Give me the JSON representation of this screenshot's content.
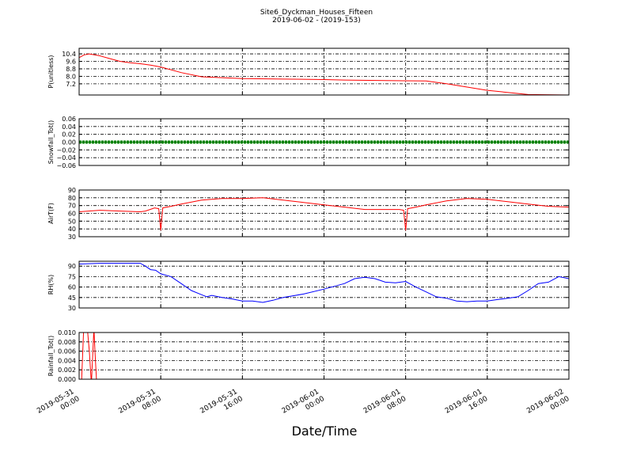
{
  "figure": {
    "title": "Site6_Dyckman_Houses_Fifteen",
    "subtitle": "2019-06-02 - (2019-153)",
    "xlabel": "Date/Time"
  },
  "chart_data": [
    {
      "type": "line",
      "ylabel": "P(unitless)",
      "color": "#ff0000",
      "ylim": [
        6.0,
        11.0
      ],
      "yticks": [
        "7.2",
        "8.0",
        "8.8",
        "9.6",
        "10.4"
      ],
      "ytick_values": [
        7.2,
        8.0,
        8.8,
        9.6,
        10.4
      ],
      "series": [
        {
          "x": [
            0,
            0.5,
            1,
            2,
            3,
            4,
            5,
            6,
            7,
            8,
            10,
            12,
            16,
            20,
            24,
            26,
            30,
            34,
            36,
            40,
            44,
            48
          ],
          "values": [
            10.0,
            10.3,
            10.4,
            10.2,
            9.9,
            9.6,
            9.45,
            9.35,
            9.2,
            9.0,
            8.4,
            7.95,
            7.75,
            7.7,
            7.65,
            7.6,
            7.55,
            7.5,
            7.2,
            6.5,
            6.05,
            6.0
          ]
        }
      ]
    },
    {
      "type": "line",
      "ylabel": "Snowfall_Tot()",
      "color": "#008000",
      "ylim": [
        -0.06,
        0.06
      ],
      "yticks": [
        "−0.06",
        "−0.04",
        "−0.02",
        "0.00",
        "0.02",
        "0.04",
        "0.06"
      ],
      "ytick_values": [
        -0.06,
        -0.04,
        -0.02,
        0.0,
        0.02,
        0.04,
        0.06
      ],
      "markers": true,
      "series": [
        {
          "x": [
            0,
            48
          ],
          "values": [
            0,
            0
          ]
        }
      ]
    },
    {
      "type": "line",
      "ylabel": "AirT(F)",
      "color": "#ff0000",
      "ylim": [
        30,
        90
      ],
      "yticks": [
        "30",
        "40",
        "50",
        "60",
        "70",
        "80",
        "90"
      ],
      "ytick_values": [
        30,
        40,
        50,
        60,
        70,
        80,
        90
      ],
      "series": [
        {
          "x": [
            0,
            2,
            4,
            6,
            6.5,
            7.4,
            7.8,
            8.0,
            8.2,
            9,
            10,
            12,
            14,
            16,
            18,
            20,
            22,
            24,
            26,
            28,
            30,
            31.4,
            31.8,
            32.0,
            32.2,
            33,
            34,
            36,
            38,
            40,
            42,
            44,
            46,
            48
          ],
          "values": [
            62,
            64,
            63,
            62,
            63,
            67,
            66,
            38,
            67,
            69,
            72,
            77,
            79,
            79,
            80,
            77,
            74,
            71,
            68,
            65,
            65,
            65,
            64,
            38,
            66,
            68,
            71,
            76,
            79,
            78,
            75,
            72,
            69,
            68
          ]
        }
      ]
    },
    {
      "type": "line",
      "ylabel": "RH(%)",
      "color": "#0000ff",
      "ylim": [
        30,
        97
      ],
      "yticks": [
        "30",
        "45",
        "60",
        "75",
        "90"
      ],
      "ytick_values": [
        30,
        45,
        60,
        75,
        90
      ],
      "series": [
        {
          "x": [
            0,
            2,
            4,
            6,
            6.5,
            7,
            7.5,
            8,
            9,
            10,
            11,
            12,
            12.5,
            13,
            14,
            15,
            16,
            17,
            18,
            19,
            20,
            22,
            24,
            26,
            27,
            28,
            29,
            30,
            31,
            32,
            33,
            34,
            35,
            36,
            37,
            38,
            39,
            40,
            41,
            42,
            43,
            44,
            45,
            46,
            47,
            48
          ],
          "values": [
            93,
            94,
            94,
            94,
            90,
            85,
            84,
            79,
            75,
            65,
            55,
            49,
            46,
            48,
            45,
            43,
            40,
            40,
            38,
            41,
            45,
            50,
            57,
            65,
            72,
            74,
            72,
            67,
            66,
            68,
            60,
            53,
            46,
            44,
            40,
            39,
            40,
            40,
            42,
            44,
            46,
            55,
            65,
            67,
            75,
            72
          ]
        }
      ]
    },
    {
      "type": "line",
      "ylabel": "Rainfall_Tot()",
      "color": "#ff0000",
      "ylim": [
        0.0,
        0.01
      ],
      "yticks": [
        "0.000",
        "0.002",
        "0.004",
        "0.006",
        "0.008",
        "0.010"
      ],
      "ytick_values": [
        0.0,
        0.002,
        0.004,
        0.006,
        0.008,
        0.01
      ],
      "series": [
        {
          "x": [
            0,
            0.25,
            0.45,
            0.6,
            0.8,
            1.0,
            1.2,
            1.35,
            1.45,
            1.55,
            1.7,
            1.8,
            1.9,
            48
          ],
          "values": [
            0,
            0,
            0.011,
            0.011,
            0.011,
            0.006,
            -0.001,
            0.006,
            0.011,
            0.006,
            0,
            0,
            0,
            0
          ]
        }
      ]
    }
  ],
  "xaxis": {
    "range": [
      "2019-05-31 00:00",
      "2019-06-02 00:00"
    ],
    "ticks": [
      [
        "2019-05-31",
        "00:00"
      ],
      [
        "2019-05-31",
        "08:00"
      ],
      [
        "2019-05-31",
        "16:00"
      ],
      [
        "2019-06-01",
        "00:00"
      ],
      [
        "2019-06-01",
        "08:00"
      ],
      [
        "2019-06-01",
        "16:00"
      ],
      [
        "2019-06-02",
        "00:00"
      ]
    ]
  }
}
